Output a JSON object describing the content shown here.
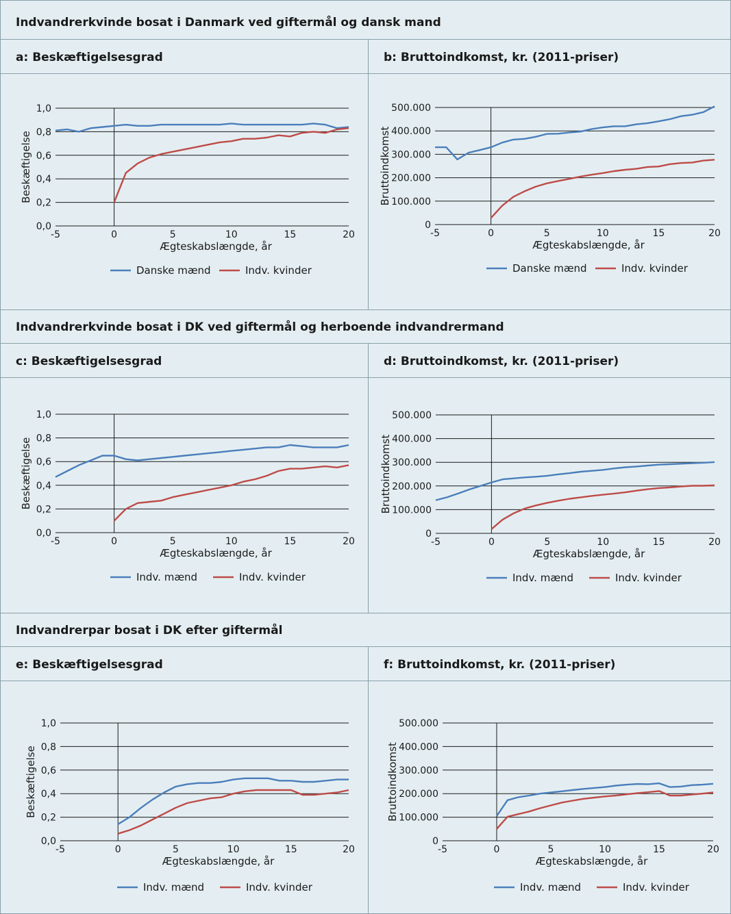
{
  "sections": [
    {
      "title": "Indvandrerkvinde bosat i Danmark ved giftermål og dansk mand"
    },
    {
      "title": "Indvandrerkvinde bosat i DK ved giftermål og herboende indvandrermand"
    },
    {
      "title": "Indvandrerpar bosat i DK efter giftermål"
    }
  ],
  "panels": [
    {
      "title": "a: Beskæftigelsesgrad"
    },
    {
      "title": "b: Bruttoindkomst, kr. (2011-priser)"
    },
    {
      "title": "c: Beskæftigelsesgrad"
    },
    {
      "title": "d: Bruttoindkomst, kr. (2011-priser)"
    },
    {
      "title": "e: Beskæftigelsesgrad"
    },
    {
      "title": "f: Bruttoindkomst, kr. (2011-priser)"
    }
  ],
  "colors": {
    "series1": "#4a7ebb",
    "series2": "#be4b48",
    "background": "#e4eef2",
    "border": "#8a9fa8"
  },
  "chart_data": [
    {
      "type": "line",
      "panel": "a",
      "title": "a: Beskæftigelsesgrad",
      "xlabel": "Ægteskabslængde, år",
      "ylabel": "Beskæftigelse",
      "xlim": [
        -5,
        20
      ],
      "ylim": [
        0,
        1.0
      ],
      "xticks": [
        "-5",
        "0",
        "5",
        "10",
        "15",
        "20"
      ],
      "yticks": [
        "0,0",
        "0,2",
        "0,4",
        "0,6",
        "0,8",
        "1,0"
      ],
      "grid": "horizontal",
      "legend": "bottom",
      "series": [
        {
          "name": "Danske mænd",
          "x": [
            -5,
            -4,
            -3,
            -2,
            -1,
            0,
            1,
            2,
            3,
            4,
            5,
            6,
            7,
            8,
            9,
            10,
            11,
            12,
            13,
            14,
            15,
            16,
            17,
            18,
            19,
            20
          ],
          "y": [
            0.81,
            0.82,
            0.8,
            0.83,
            0.84,
            0.85,
            0.86,
            0.85,
            0.85,
            0.86,
            0.86,
            0.86,
            0.86,
            0.86,
            0.86,
            0.87,
            0.86,
            0.86,
            0.86,
            0.86,
            0.86,
            0.86,
            0.87,
            0.86,
            0.83,
            0.84
          ]
        },
        {
          "name": "Indv. kvinder",
          "x": [
            0,
            1,
            2,
            3,
            4,
            5,
            6,
            7,
            8,
            9,
            10,
            11,
            12,
            13,
            14,
            15,
            16,
            17,
            18,
            19,
            20
          ],
          "y": [
            0.2,
            0.45,
            0.53,
            0.58,
            0.61,
            0.63,
            0.65,
            0.67,
            0.69,
            0.71,
            0.72,
            0.74,
            0.74,
            0.75,
            0.77,
            0.76,
            0.79,
            0.8,
            0.79,
            0.82,
            0.83
          ]
        }
      ]
    },
    {
      "type": "line",
      "panel": "b",
      "title": "b: Bruttoindkomst, kr. (2011-priser)",
      "xlabel": "Ægteskabslængde, år",
      "ylabel": "Bruttoindkomst",
      "xlim": [
        -5,
        20
      ],
      "ylim": [
        0,
        500000
      ],
      "xticks": [
        "-5",
        "0",
        "5",
        "10",
        "15",
        "20"
      ],
      "yticks": [
        "0",
        "100.000",
        "200.000",
        "300.000",
        "400.000",
        "500.000"
      ],
      "grid": "horizontal",
      "legend": "bottom",
      "series": [
        {
          "name": "Danske mænd",
          "x": [
            -5,
            -4,
            -3,
            -2,
            -1,
            0,
            1,
            2,
            3,
            4,
            5,
            6,
            7,
            8,
            9,
            10,
            11,
            12,
            13,
            14,
            15,
            16,
            17,
            18,
            19,
            20
          ],
          "y": [
            330000,
            330000,
            278000,
            307000,
            318000,
            330000,
            350000,
            363000,
            366000,
            375000,
            387000,
            388000,
            393000,
            397000,
            408000,
            415000,
            420000,
            420000,
            428000,
            433000,
            441000,
            450000,
            463000,
            469000,
            480000,
            505000
          ]
        },
        {
          "name": "Indv. kvinder",
          "x": [
            0,
            1,
            2,
            3,
            4,
            5,
            6,
            7,
            8,
            9,
            10,
            11,
            12,
            13,
            14,
            15,
            16,
            17,
            18,
            19,
            20
          ],
          "y": [
            28000,
            80000,
            118000,
            142000,
            162000,
            176000,
            186000,
            195000,
            205000,
            213000,
            220000,
            228000,
            234000,
            238000,
            246000,
            248000,
            258000,
            263000,
            265000,
            273000,
            277000
          ]
        }
      ]
    },
    {
      "type": "line",
      "panel": "c",
      "title": "c: Beskæftigelsesgrad",
      "xlabel": "Ægteskabslængde, år",
      "ylabel": "Beskæftigelse",
      "xlim": [
        -5,
        20
      ],
      "ylim": [
        0,
        1.0
      ],
      "xticks": [
        "-5",
        "0",
        "5",
        "10",
        "15",
        "20"
      ],
      "yticks": [
        "0,0",
        "0,2",
        "0,4",
        "0,6",
        "0,8",
        "1,0"
      ],
      "grid": "horizontal",
      "legend": "bottom",
      "series": [
        {
          "name": "Indv. mænd",
          "x": [
            -5,
            -4,
            -3,
            -2,
            -1,
            0,
            1,
            2,
            3,
            4,
            5,
            6,
            7,
            8,
            9,
            10,
            11,
            12,
            13,
            14,
            15,
            16,
            17,
            18,
            19,
            20
          ],
          "y": [
            0.47,
            0.52,
            0.57,
            0.61,
            0.65,
            0.65,
            0.62,
            0.61,
            0.62,
            0.63,
            0.64,
            0.65,
            0.66,
            0.67,
            0.68,
            0.69,
            0.7,
            0.71,
            0.72,
            0.72,
            0.74,
            0.73,
            0.72,
            0.72,
            0.72,
            0.74
          ]
        },
        {
          "name": "Indv. kvinder",
          "x": [
            0,
            1,
            2,
            3,
            4,
            5,
            6,
            7,
            8,
            9,
            10,
            11,
            12,
            13,
            14,
            15,
            16,
            17,
            18,
            19,
            20
          ],
          "y": [
            0.1,
            0.2,
            0.25,
            0.26,
            0.27,
            0.3,
            0.32,
            0.34,
            0.36,
            0.38,
            0.4,
            0.43,
            0.45,
            0.48,
            0.52,
            0.54,
            0.54,
            0.55,
            0.56,
            0.55,
            0.57
          ]
        }
      ]
    },
    {
      "type": "line",
      "panel": "d",
      "title": "d: Bruttoindkomst, kr. (2011-priser)",
      "xlabel": "Ægteskabslængde, år",
      "ylabel": "Bruttoindkomst",
      "xlim": [
        -5,
        20
      ],
      "ylim": [
        0,
        500000
      ],
      "xticks": [
        "-5",
        "0",
        "5",
        "10",
        "15",
        "20"
      ],
      "yticks": [
        "0",
        "100.000",
        "200.000",
        "300.000",
        "400.000",
        "500.000"
      ],
      "grid": "horizontal",
      "legend": "bottom",
      "series": [
        {
          "name": "Indv. mænd",
          "x": [
            -5,
            -4,
            -3,
            -2,
            -1,
            0,
            1,
            2,
            3,
            4,
            5,
            6,
            7,
            8,
            9,
            10,
            11,
            12,
            13,
            14,
            15,
            16,
            17,
            18,
            19,
            20
          ],
          "y": [
            140000,
            152000,
            168000,
            185000,
            200000,
            215000,
            228000,
            232000,
            236000,
            239000,
            243000,
            249000,
            254000,
            260000,
            264000,
            268000,
            274000,
            279000,
            282000,
            286000,
            290000,
            292000,
            294000,
            296000,
            298000,
            301000
          ]
        },
        {
          "name": "Indv. kvinder",
          "x": [
            0,
            1,
            2,
            3,
            4,
            5,
            6,
            7,
            8,
            9,
            10,
            11,
            12,
            13,
            14,
            15,
            16,
            17,
            18,
            19,
            20
          ],
          "y": [
            18000,
            58000,
            85000,
            105000,
            118000,
            129000,
            138000,
            146000,
            152000,
            158000,
            163000,
            168000,
            173000,
            180000,
            186000,
            191000,
            194000,
            198000,
            201000,
            201000,
            203000
          ]
        }
      ]
    },
    {
      "type": "line",
      "panel": "e",
      "title": "e: Beskæftigelsesgrad",
      "xlabel": "Ægteskabslængde, år",
      "ylabel": "Beskæftigelse",
      "xlim": [
        -5,
        20
      ],
      "ylim": [
        0,
        1.0
      ],
      "xticks": [
        "-5",
        "0",
        "5",
        "10",
        "15",
        "20"
      ],
      "yticks": [
        "0,0",
        "0,2",
        "0,4",
        "0,6",
        "0,8",
        "1,0"
      ],
      "grid": "horizontal",
      "legend": "bottom",
      "series": [
        {
          "name": "Indv. mænd",
          "x": [
            0,
            1,
            2,
            3,
            4,
            5,
            6,
            7,
            8,
            9,
            10,
            11,
            12,
            13,
            14,
            15,
            16,
            17,
            18,
            19,
            20
          ],
          "y": [
            0.14,
            0.2,
            0.28,
            0.35,
            0.41,
            0.46,
            0.48,
            0.49,
            0.49,
            0.5,
            0.52,
            0.53,
            0.53,
            0.53,
            0.51,
            0.51,
            0.5,
            0.5,
            0.51,
            0.52,
            0.52
          ]
        },
        {
          "name": "Indv. kvinder",
          "x": [
            0,
            1,
            2,
            3,
            4,
            5,
            6,
            7,
            8,
            9,
            10,
            11,
            12,
            13,
            14,
            15,
            16,
            17,
            18,
            19,
            20
          ],
          "y": [
            0.06,
            0.09,
            0.13,
            0.18,
            0.23,
            0.28,
            0.32,
            0.34,
            0.36,
            0.37,
            0.4,
            0.42,
            0.43,
            0.43,
            0.43,
            0.43,
            0.39,
            0.39,
            0.4,
            0.41,
            0.43
          ]
        }
      ]
    },
    {
      "type": "line",
      "panel": "f",
      "title": "f: Bruttoindkomst, kr. (2011-priser)",
      "xlabel": "Ægteskabslængde, år",
      "ylabel": "Bruttoindkomst",
      "xlim": [
        -5,
        20
      ],
      "ylim": [
        0,
        500000
      ],
      "xticks": [
        "-5",
        "0",
        "5",
        "10",
        "15",
        "20"
      ],
      "yticks": [
        "0",
        "100.000",
        "200.000",
        "300.000",
        "400.000",
        "500.000"
      ],
      "grid": "horizontal",
      "legend": "bottom",
      "series": [
        {
          "name": "Indv. mænd",
          "x": [
            0,
            1,
            2,
            3,
            4,
            5,
            6,
            7,
            8,
            9,
            10,
            11,
            12,
            13,
            14,
            15,
            16,
            17,
            18,
            19,
            20
          ],
          "y": [
            105000,
            172000,
            185000,
            192000,
            200000,
            205000,
            210000,
            215000,
            220000,
            224000,
            228000,
            234000,
            238000,
            241000,
            240000,
            244000,
            228000,
            230000,
            236000,
            238000,
            242000
          ]
        },
        {
          "name": "Indv. kvinder",
          "x": [
            0,
            1,
            2,
            3,
            4,
            5,
            6,
            7,
            8,
            9,
            10,
            11,
            12,
            13,
            14,
            15,
            16,
            17,
            18,
            19,
            20
          ],
          "y": [
            50000,
            102000,
            113000,
            124000,
            138000,
            150000,
            162000,
            170000,
            178000,
            183000,
            188000,
            192000,
            197000,
            202000,
            206000,
            211000,
            192000,
            192000,
            196000,
            200000,
            205000
          ]
        }
      ]
    }
  ]
}
